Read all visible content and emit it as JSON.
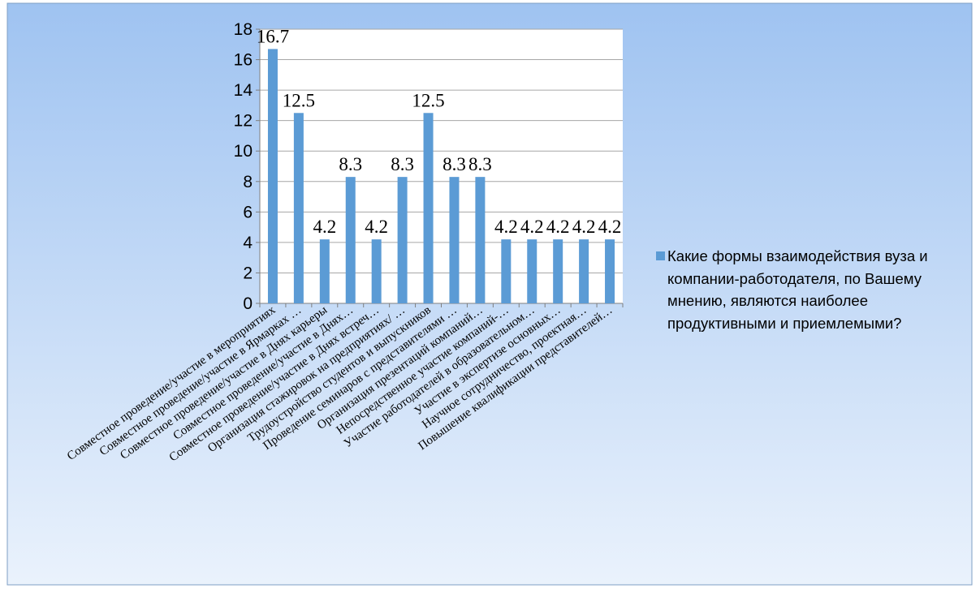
{
  "chart_data": {
    "type": "bar",
    "categories": [
      "Совместное проведение/участие в мероприятиях",
      "Совместное проведение/участие в Ярмарках …",
      "Совместное проведение/участие в Днях карьеры",
      "Совместное проведение/участие в Днях…",
      "Совместное проведение/участие в Днях встреч…",
      "Организация стажировок на предприятиях/ …",
      "Трудоустройство студентов и выпускников",
      "Проведение семинаров с представителями …",
      "Организация презентаций компаний…",
      "Непосредственное участие компаний-…",
      "Участие работодателей в образовательном…",
      "Участие в экспертизе основных…",
      "Научное сотрудничество, проектная…",
      "Повышение квалификации представителей…"
    ],
    "series": [
      {
        "name": "Какие формы взаимодействия вуза и компании-работодателя, по Вашему мнению, являются наиболее продуктивными и приемлемыми?",
        "values": [
          16.7,
          12.5,
          4.2,
          8.3,
          4.2,
          8.3,
          12.5,
          8.3,
          8.3,
          4.2,
          4.2,
          4.2,
          4.2,
          4.2
        ],
        "color": "#5b9bd5"
      }
    ],
    "ylim": [
      0,
      18
    ],
    "yticks": [
      "0",
      "2",
      "4",
      "6",
      "8",
      "10",
      "12",
      "14",
      "16",
      "18"
    ],
    "grid": true,
    "legend_position": "right"
  },
  "colors": {
    "bar": "#5b9bd5",
    "background_top": "#9fc3f1",
    "background_bottom": "#eaf2fc",
    "grid": "#a6a6a6"
  }
}
